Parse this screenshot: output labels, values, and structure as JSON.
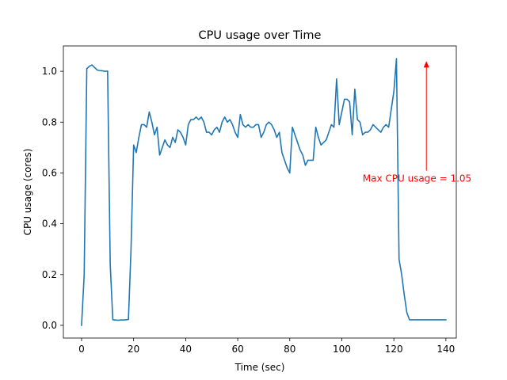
{
  "chart_data": {
    "type": "line",
    "title": "CPU usage over Time",
    "xlabel": "Time (sec)",
    "ylabel": "CPU usage (cores)",
    "xlim": [
      -7,
      144
    ],
    "ylim": [
      -0.05,
      1.1
    ],
    "xticks": [
      0,
      20,
      40,
      60,
      80,
      100,
      120,
      140
    ],
    "yticks": [
      0.0,
      0.2,
      0.4,
      0.6,
      0.8,
      1.0
    ],
    "ytick_labels": [
      "0.0",
      "0.2",
      "0.4",
      "0.6",
      "0.8",
      "1.0"
    ],
    "grid": false,
    "line_color": "#1f77b4",
    "series": [
      {
        "name": "CPU usage",
        "x": [
          0,
          1,
          2,
          3,
          4,
          5,
          6,
          7,
          8,
          9,
          10,
          11,
          12,
          13,
          14,
          15,
          16,
          17,
          18,
          19,
          20,
          21,
          22,
          23,
          24,
          25,
          26,
          27,
          28,
          29,
          30,
          31,
          32,
          33,
          34,
          35,
          36,
          37,
          38,
          39,
          40,
          41,
          42,
          43,
          44,
          45,
          46,
          47,
          48,
          49,
          50,
          51,
          52,
          53,
          54,
          55,
          56,
          57,
          58,
          59,
          60,
          61,
          62,
          63,
          64,
          65,
          66,
          67,
          68,
          69,
          70,
          71,
          72,
          73,
          74,
          75,
          76,
          77,
          78,
          79,
          80,
          81,
          82,
          83,
          84,
          85,
          86,
          87,
          88,
          89,
          90,
          91,
          92,
          93,
          94,
          95,
          96,
          97,
          98,
          99,
          100,
          101,
          102,
          103,
          104,
          105,
          106,
          107,
          108,
          109,
          110,
          111,
          112,
          113,
          114,
          115,
          116,
          117,
          118,
          119,
          120,
          121,
          122,
          123,
          124,
          125,
          126,
          127,
          128,
          129,
          130,
          131,
          132,
          133,
          134,
          135,
          136,
          137,
          138,
          139,
          140
        ],
        "values": [
          0.0,
          0.2,
          1.01,
          1.02,
          1.025,
          1.015,
          1.005,
          1.003,
          1.002,
          1.0,
          1.001,
          0.24,
          0.022,
          0.021,
          0.02,
          0.021,
          0.021,
          0.022,
          0.023,
          0.3,
          0.71,
          0.68,
          0.74,
          0.79,
          0.79,
          0.78,
          0.84,
          0.8,
          0.75,
          0.78,
          0.67,
          0.7,
          0.73,
          0.71,
          0.7,
          0.74,
          0.72,
          0.77,
          0.76,
          0.74,
          0.71,
          0.79,
          0.81,
          0.81,
          0.82,
          0.81,
          0.82,
          0.8,
          0.76,
          0.76,
          0.75,
          0.77,
          0.78,
          0.76,
          0.8,
          0.82,
          0.8,
          0.81,
          0.79,
          0.76,
          0.74,
          0.83,
          0.79,
          0.78,
          0.79,
          0.78,
          0.78,
          0.79,
          0.79,
          0.74,
          0.76,
          0.79,
          0.8,
          0.79,
          0.77,
          0.74,
          0.76,
          0.68,
          0.65,
          0.62,
          0.6,
          0.78,
          0.75,
          0.72,
          0.69,
          0.67,
          0.63,
          0.65,
          0.65,
          0.65,
          0.78,
          0.74,
          0.71,
          0.72,
          0.73,
          0.76,
          0.79,
          0.78,
          0.97,
          0.79,
          0.84,
          0.89,
          0.89,
          0.88,
          0.75,
          0.93,
          0.81,
          0.8,
          0.75,
          0.76,
          0.76,
          0.77,
          0.79,
          0.78,
          0.77,
          0.76,
          0.78,
          0.79,
          0.78,
          0.85,
          0.92,
          1.05,
          0.26,
          0.2,
          0.12,
          0.05,
          0.022,
          0.022,
          0.022,
          0.022,
          0.022,
          0.022,
          0.022,
          0.022,
          0.022,
          0.022,
          0.022,
          0.022,
          0.022,
          0.022,
          0.022
        ]
      }
    ],
    "annotation": {
      "text": "Max CPU usage = 1.05",
      "color": "#ff0000",
      "point": [
        132.5,
        1.04
      ],
      "text_pos": [
        108,
        0.565
      ]
    }
  }
}
